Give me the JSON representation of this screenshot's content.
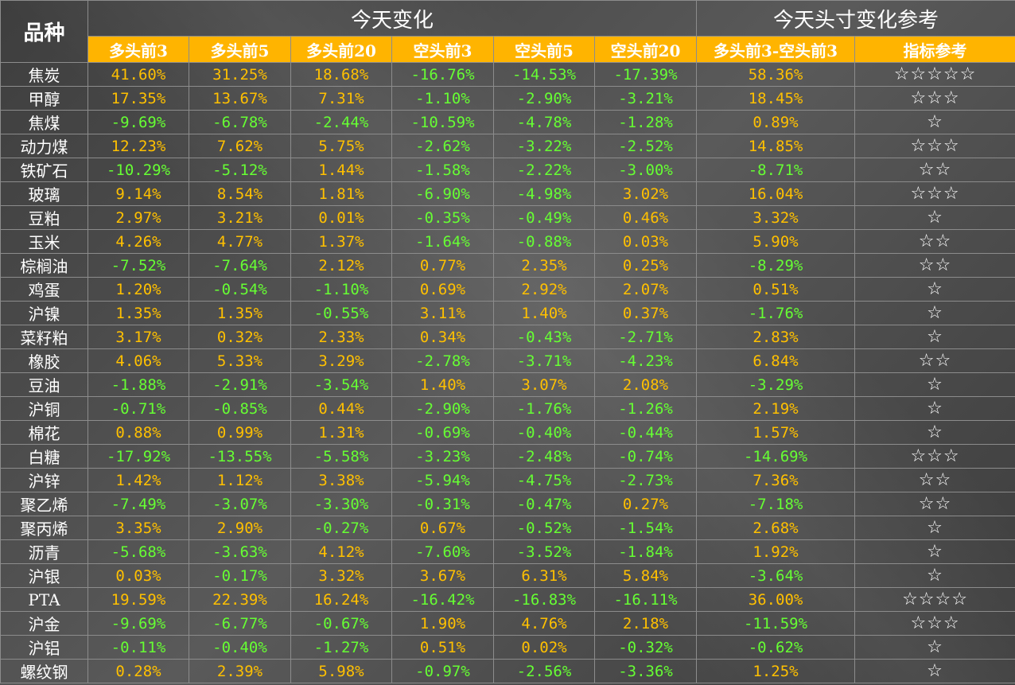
{
  "header": {
    "corner_label": "品种",
    "group_today": "今天变化",
    "group_ref": "今天头寸变化参考"
  },
  "columns": [
    "多头前3",
    "多头前5",
    "多头前20",
    "空头前3",
    "空头前5",
    "空头前20",
    "多头前3-空头前3",
    "指标参考"
  ],
  "colors": {
    "positive": "#ffc000",
    "negative": "#66ff33",
    "header_bg": "#ffb400"
  },
  "rows": [
    {
      "name": "焦炭",
      "values": [
        "41.60%",
        "31.25%",
        "18.68%",
        "-16.76%",
        "-14.53%",
        "-17.39%",
        "58.36%"
      ],
      "rating": "☆☆☆☆☆"
    },
    {
      "name": "甲醇",
      "values": [
        "17.35%",
        "13.67%",
        "7.31%",
        "-1.10%",
        "-2.90%",
        "-3.21%",
        "18.45%"
      ],
      "rating": "☆☆☆"
    },
    {
      "name": "焦煤",
      "values": [
        "-9.69%",
        "-6.78%",
        "-2.44%",
        "-10.59%",
        "-4.78%",
        "-1.28%",
        "0.89%"
      ],
      "rating": "☆"
    },
    {
      "name": "动力煤",
      "values": [
        "12.23%",
        "7.62%",
        "5.75%",
        "-2.62%",
        "-3.22%",
        "-2.52%",
        "14.85%"
      ],
      "rating": "☆☆☆"
    },
    {
      "name": "铁矿石",
      "values": [
        "-10.29%",
        "-5.12%",
        "1.44%",
        "-1.58%",
        "-2.22%",
        "-3.00%",
        "-8.71%"
      ],
      "rating": "☆☆"
    },
    {
      "name": "玻璃",
      "values": [
        "9.14%",
        "8.54%",
        "1.81%",
        "-6.90%",
        "-4.98%",
        "3.02%",
        "16.04%"
      ],
      "rating": "☆☆☆"
    },
    {
      "name": "豆粕",
      "values": [
        "2.97%",
        "3.21%",
        "0.01%",
        "-0.35%",
        "-0.49%",
        "0.46%",
        "3.32%"
      ],
      "rating": "☆"
    },
    {
      "name": "玉米",
      "values": [
        "4.26%",
        "4.77%",
        "1.37%",
        "-1.64%",
        "-0.88%",
        "0.03%",
        "5.90%"
      ],
      "rating": "☆☆"
    },
    {
      "name": "棕榈油",
      "values": [
        "-7.52%",
        "-7.64%",
        "2.12%",
        "0.77%",
        "2.35%",
        "0.25%",
        "-8.29%"
      ],
      "rating": "☆☆"
    },
    {
      "name": "鸡蛋",
      "values": [
        "1.20%",
        "-0.54%",
        "-1.10%",
        "0.69%",
        "2.92%",
        "2.07%",
        "0.51%"
      ],
      "rating": "☆"
    },
    {
      "name": "沪镍",
      "values": [
        "1.35%",
        "1.35%",
        "-0.55%",
        "3.11%",
        "1.40%",
        "0.37%",
        "-1.76%"
      ],
      "rating": "☆"
    },
    {
      "name": "菜籽粕",
      "values": [
        "3.17%",
        "0.32%",
        "2.33%",
        "0.34%",
        "-0.43%",
        "-2.71%",
        "2.83%"
      ],
      "rating": "☆"
    },
    {
      "name": "橡胶",
      "values": [
        "4.06%",
        "5.33%",
        "3.29%",
        "-2.78%",
        "-3.71%",
        "-4.23%",
        "6.84%"
      ],
      "rating": "☆☆"
    },
    {
      "name": "豆油",
      "values": [
        "-1.88%",
        "-2.91%",
        "-3.54%",
        "1.40%",
        "3.07%",
        "2.08%",
        "-3.29%"
      ],
      "rating": "☆"
    },
    {
      "name": "沪铜",
      "values": [
        "-0.71%",
        "-0.85%",
        "0.44%",
        "-2.90%",
        "-1.76%",
        "-1.26%",
        "2.19%"
      ],
      "rating": "☆"
    },
    {
      "name": "棉花",
      "values": [
        "0.88%",
        "0.99%",
        "1.31%",
        "-0.69%",
        "-0.40%",
        "-0.44%",
        "1.57%"
      ],
      "rating": "☆"
    },
    {
      "name": "白糖",
      "values": [
        "-17.92%",
        "-13.55%",
        "-5.58%",
        "-3.23%",
        "-2.48%",
        "-0.74%",
        "-14.69%"
      ],
      "rating": "☆☆☆"
    },
    {
      "name": "沪锌",
      "values": [
        "1.42%",
        "1.12%",
        "3.38%",
        "-5.94%",
        "-4.75%",
        "-2.73%",
        "7.36%"
      ],
      "rating": "☆☆"
    },
    {
      "name": "聚乙烯",
      "values": [
        "-7.49%",
        "-3.07%",
        "-3.30%",
        "-0.31%",
        "-0.47%",
        "0.27%",
        "-7.18%"
      ],
      "rating": "☆☆"
    },
    {
      "name": "聚丙烯",
      "values": [
        "3.35%",
        "2.90%",
        "-0.27%",
        "0.67%",
        "-0.52%",
        "-1.54%",
        "2.68%"
      ],
      "rating": "☆"
    },
    {
      "name": "沥青",
      "values": [
        "-5.68%",
        "-3.63%",
        "4.12%",
        "-7.60%",
        "-3.52%",
        "-1.84%",
        "1.92%"
      ],
      "rating": "☆"
    },
    {
      "name": "沪银",
      "values": [
        "0.03%",
        "-0.17%",
        "3.32%",
        "3.67%",
        "6.31%",
        "5.84%",
        "-3.64%"
      ],
      "rating": "☆"
    },
    {
      "name": "PTA",
      "values": [
        "19.59%",
        "22.39%",
        "16.24%",
        "-16.42%",
        "-16.83%",
        "-16.11%",
        "36.00%"
      ],
      "rating": "☆☆☆☆"
    },
    {
      "name": "沪金",
      "values": [
        "-9.69%",
        "-6.77%",
        "-0.67%",
        "1.90%",
        "4.76%",
        "2.18%",
        "-11.59%"
      ],
      "rating": "☆☆☆"
    },
    {
      "name": "沪铝",
      "values": [
        "-0.11%",
        "-0.40%",
        "-1.27%",
        "0.51%",
        "0.02%",
        "-0.32%",
        "-0.62%"
      ],
      "rating": "☆"
    },
    {
      "name": "螺纹钢",
      "values": [
        "0.28%",
        "2.39%",
        "5.98%",
        "-0.97%",
        "-2.56%",
        "-3.36%",
        "1.25%"
      ],
      "rating": "☆"
    }
  ]
}
